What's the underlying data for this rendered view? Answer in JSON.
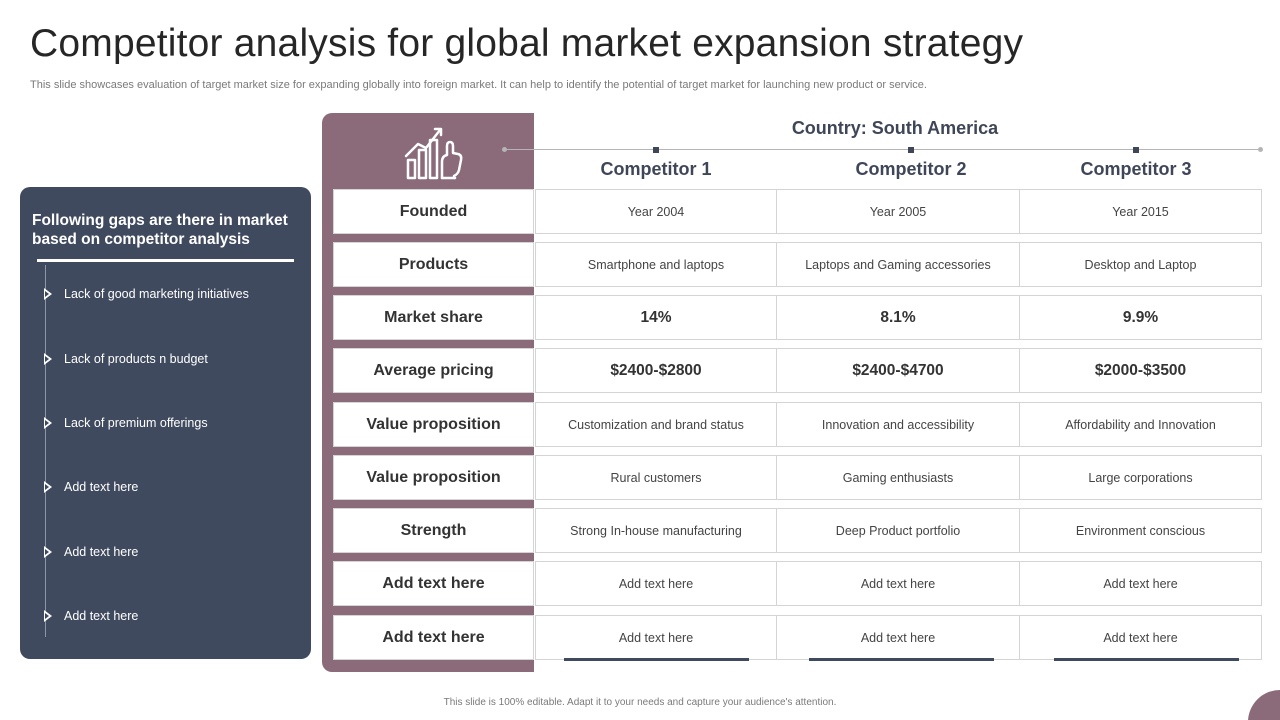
{
  "title": "Competitor analysis for global market expansion strategy",
  "subtitle": "This slide showcases evaluation of target market size for expanding globally into foreign market. It can help to identify the potential of target market for launching new product or service.",
  "gaps": {
    "heading": "Following gaps are there in market based on competitor analysis",
    "items": [
      "Lack of good marketing initiatives",
      "Lack of products n budget",
      "Lack of premium offerings",
      "Add text here",
      "Add text here",
      "Add text here"
    ]
  },
  "header": {
    "icon": "growth-chart-hand-icon",
    "country": "Country: South America",
    "competitors": [
      "Competitor 1",
      "Competitor 2",
      "Competitor 3"
    ]
  },
  "table": {
    "rows": [
      {
        "label": "Founded",
        "values": [
          "Year 2004",
          "Year 2005",
          "Year 2015"
        ]
      },
      {
        "label": "Products",
        "values": [
          "Smartphone and laptops",
          "Laptops and Gaming accessories",
          "Desktop and Laptop"
        ]
      },
      {
        "label": "Market share",
        "values": [
          "14%",
          "8.1%",
          "9.9%"
        ]
      },
      {
        "label": "Average pricing",
        "values": [
          "$2400-$2800",
          "$2400-$4700",
          "$2000-$3500"
        ]
      },
      {
        "label": "Value proposition",
        "values": [
          "Customization and brand status",
          "Innovation  and accessibility",
          "Affordability and Innovation"
        ]
      },
      {
        "label": "Value proposition",
        "values": [
          "Rural customers",
          "Gaming enthusiasts",
          "Large corporations"
        ]
      },
      {
        "label": "Strength",
        "values": [
          "Strong In-house manufacturing",
          "Deep Product portfolio",
          "Environment  conscious"
        ]
      },
      {
        "label": "Add text here",
        "values": [
          "Add text here",
          "Add text here",
          "Add text here"
        ]
      },
      {
        "label": "Add text here",
        "values": [
          "Add text here",
          "Add text here",
          "Add text here"
        ]
      }
    ]
  },
  "footer": "This slide is 100% editable.  Adapt it to your needs and capture your audience's attention.",
  "colors": {
    "navy": "#404a5f",
    "mauve": "#8b6a7a",
    "heading_text": "#3e4658"
  }
}
